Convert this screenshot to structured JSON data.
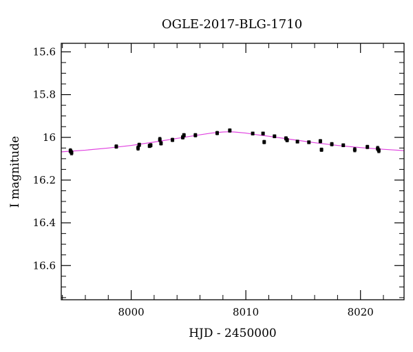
{
  "chart_data": {
    "type": "scatter",
    "title": "OGLE-2017-BLG-1710",
    "xlabel": "HJD - 2450000",
    "ylabel": "I magnitude",
    "xlim": [
      7993.9,
      8023.8
    ],
    "ylim": [
      16.76,
      15.56
    ],
    "y_inverted": true,
    "grid": false,
    "x_ticks": [
      8000,
      8010,
      8020
    ],
    "x_tick_labels": [
      "8000",
      "8010",
      "8020"
    ],
    "y_ticks": [
      15.6,
      15.8,
      16.0,
      16.2,
      16.4,
      16.6
    ],
    "y_tick_labels": [
      "15.6",
      "15.8",
      "16",
      "16.2",
      "16.4",
      "16.6"
    ],
    "points": [
      {
        "x": 7994.7,
        "y": 16.063,
        "err": 0.01
      },
      {
        "x": 7994.8,
        "y": 16.072,
        "err": 0.01
      },
      {
        "x": 7998.7,
        "y": 16.043,
        "err": 0.008
      },
      {
        "x": 8000.6,
        "y": 16.05,
        "err": 0.01
      },
      {
        "x": 8000.7,
        "y": 16.035,
        "err": 0.008
      },
      {
        "x": 8001.6,
        "y": 16.04,
        "err": 0.008
      },
      {
        "x": 8001.7,
        "y": 16.037,
        "err": 0.008
      },
      {
        "x": 8002.5,
        "y": 16.01,
        "err": 0.01
      },
      {
        "x": 8002.6,
        "y": 16.028,
        "err": 0.008
      },
      {
        "x": 8003.6,
        "y": 16.012,
        "err": 0.008
      },
      {
        "x": 8004.5,
        "y": 16.0,
        "err": 0.008
      },
      {
        "x": 8004.6,
        "y": 15.99,
        "err": 0.008
      },
      {
        "x": 8005.6,
        "y": 15.99,
        "err": 0.008
      },
      {
        "x": 8007.5,
        "y": 15.98,
        "err": 0.008
      },
      {
        "x": 8008.6,
        "y": 15.968,
        "err": 0.008
      },
      {
        "x": 8010.6,
        "y": 15.982,
        "err": 0.007
      },
      {
        "x": 8011.5,
        "y": 15.982,
        "err": 0.007
      },
      {
        "x": 8011.6,
        "y": 16.022,
        "err": 0.008
      },
      {
        "x": 8012.5,
        "y": 15.995,
        "err": 0.007
      },
      {
        "x": 8013.5,
        "y": 16.005,
        "err": 0.008
      },
      {
        "x": 8013.6,
        "y": 16.013,
        "err": 0.008
      },
      {
        "x": 8014.5,
        "y": 16.02,
        "err": 0.007
      },
      {
        "x": 8015.5,
        "y": 16.023,
        "err": 0.007
      },
      {
        "x": 8016.5,
        "y": 16.018,
        "err": 0.008
      },
      {
        "x": 8016.6,
        "y": 16.058,
        "err": 0.008
      },
      {
        "x": 8017.5,
        "y": 16.032,
        "err": 0.008
      },
      {
        "x": 8018.5,
        "y": 16.037,
        "err": 0.007
      },
      {
        "x": 8019.5,
        "y": 16.058,
        "err": 0.01
      },
      {
        "x": 8020.6,
        "y": 16.045,
        "err": 0.008
      },
      {
        "x": 8021.5,
        "y": 16.052,
        "err": 0.01
      },
      {
        "x": 8021.6,
        "y": 16.062,
        "err": 0.01
      }
    ],
    "model": {
      "x": [
        7993.9,
        7996,
        7998,
        8000,
        8002,
        8004,
        8006,
        8007,
        8008,
        8008.5,
        8009,
        8010,
        8011,
        8012,
        8014,
        8016,
        8018,
        8020,
        8022,
        8023.8
      ],
      "y": [
        16.068,
        16.06,
        16.05,
        16.038,
        16.022,
        16.005,
        15.988,
        15.98,
        15.975,
        15.974,
        15.975,
        15.98,
        15.988,
        15.995,
        16.01,
        16.025,
        16.038,
        16.048,
        16.056,
        16.062
      ]
    },
    "colors": {
      "model_line": "#e040e0",
      "points": "#000000",
      "axes": "#000000"
    }
  }
}
